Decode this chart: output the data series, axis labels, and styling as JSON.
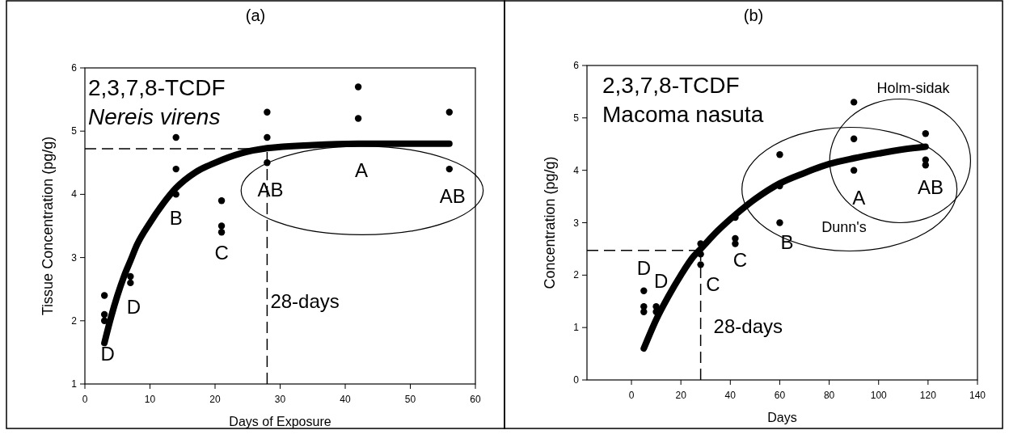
{
  "chart_data": [
    {
      "type": "scatter",
      "title": "(a)",
      "xlabel": "Days of Exposure",
      "ylabel": "Tissue Concentration (pg/g)",
      "xlim": [
        0,
        60
      ],
      "ylim": [
        1,
        6
      ],
      "xticks": [
        0,
        10,
        20,
        30,
        40,
        50,
        60
      ],
      "yticks": [
        1,
        2,
        3,
        4,
        5,
        6
      ],
      "series": [
        {
          "marker": "circle",
          "color": "#000000",
          "x": [
            3,
            3,
            3,
            7,
            7,
            14,
            14,
            14,
            21,
            21,
            21,
            28,
            28,
            28,
            42,
            42,
            56,
            56
          ],
          "values": [
            2.4,
            2.1,
            2.0,
            2.7,
            2.6,
            4.9,
            4.4,
            4.0,
            3.9,
            3.5,
            3.4,
            5.3,
            4.9,
            4.5,
            5.7,
            5.2,
            5.3,
            4.4
          ]
        },
        {
          "type": "line",
          "marker": "none",
          "color": "#000000",
          "x": [
            3,
            4,
            5,
            6,
            7,
            8,
            10,
            12,
            14,
            17,
            20,
            24,
            28,
            35,
            42,
            56
          ],
          "values": [
            1.65,
            2.05,
            2.4,
            2.7,
            2.95,
            3.2,
            3.55,
            3.85,
            4.1,
            4.35,
            4.5,
            4.65,
            4.73,
            4.78,
            4.8,
            4.8
          ]
        }
      ],
      "ref_lines": [
        {
          "axis": "y",
          "value": 4.72,
          "line_style": "dashed",
          "color": "#000000"
        },
        {
          "axis": "x",
          "value": 28,
          "label": "28-days",
          "line_style": "dashed",
          "color": "#000000"
        }
      ],
      "annotations": [
        "2,3,7,8-TCDF",
        "Nereis virens",
        "D",
        "D",
        "B",
        "C",
        "AB",
        "A",
        "AB"
      ]
    },
    {
      "type": "scatter",
      "title": "(b)",
      "xlabel": "Days",
      "ylabel": "Concentration (pg/g)",
      "xlim": [
        -18,
        140
      ],
      "ylim": [
        0,
        6
      ],
      "xticks": [
        0,
        20,
        40,
        60,
        80,
        100,
        120,
        140
      ],
      "yticks": [
        0,
        1,
        2,
        3,
        4,
        5,
        6
      ],
      "series": [
        {
          "marker": "circle",
          "color": "#000000",
          "x": [
            5,
            5,
            5,
            10,
            10,
            28,
            28,
            28,
            42,
            42,
            42,
            60,
            60,
            60,
            90,
            90,
            90,
            119,
            119,
            119
          ],
          "values": [
            1.7,
            1.4,
            1.3,
            1.4,
            1.3,
            2.6,
            2.4,
            2.2,
            3.1,
            2.7,
            2.6,
            4.3,
            3.7,
            3.0,
            5.3,
            4.6,
            4.0,
            4.7,
            4.2,
            4.1
          ]
        },
        {
          "type": "line",
          "marker": "none",
          "color": "#000000",
          "x": [
            5,
            10,
            15,
            20,
            25,
            28,
            35,
            42,
            50,
            60,
            70,
            80,
            90,
            100,
            110,
            119
          ],
          "values": [
            0.6,
            1.15,
            1.6,
            2.0,
            2.35,
            2.5,
            2.85,
            3.15,
            3.45,
            3.75,
            3.95,
            4.12,
            4.23,
            4.32,
            4.4,
            4.45
          ]
        }
      ],
      "ref_lines": [
        {
          "axis": "y",
          "value": 2.47,
          "line_style": "dashed",
          "color": "#000000"
        },
        {
          "axis": "x",
          "value": 28,
          "label": "28-days",
          "line_style": "dashed",
          "color": "#000000"
        }
      ],
      "annotations": [
        "2,3,7,8-TCDF",
        "Macoma nasuta",
        "D",
        "D",
        "C",
        "C",
        "B",
        "A",
        "AB",
        "Holm-sidak",
        "Dunn's"
      ]
    }
  ]
}
